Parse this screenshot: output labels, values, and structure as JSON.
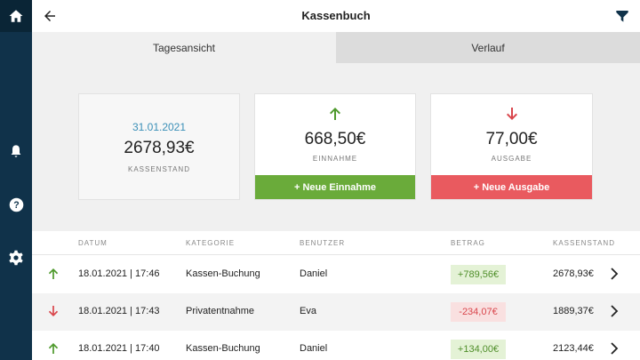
{
  "header": {
    "title": "Kassenbuch",
    "back_icon": "arrow-left-icon",
    "filter_icon": "filter-icon"
  },
  "sidebar": {
    "items": [
      {
        "icon": "home-icon"
      },
      {
        "icon": "bell-icon"
      },
      {
        "icon": "help-icon"
      },
      {
        "icon": "gear-icon"
      }
    ]
  },
  "tabs": [
    {
      "label": "Tagesansicht",
      "active": true
    },
    {
      "label": "Verlauf",
      "active": false
    }
  ],
  "summary": {
    "balance": {
      "date": "31.01.2021",
      "amount": "2678,93€",
      "label": "KASSENSTAND"
    },
    "income": {
      "amount": "668,50€",
      "label": "EINNAHME",
      "action": "+ Neue Einnahme",
      "icon": "arrow-up-icon"
    },
    "expense": {
      "amount": "77,00€",
      "label": "AUSGABE",
      "action": "+ Neue Ausgabe",
      "icon": "arrow-down-icon"
    }
  },
  "table": {
    "columns": [
      "DATUM",
      "KATEGORIE",
      "BENUTZER",
      "BETRAG",
      "KASSENSTAND"
    ],
    "rows": [
      {
        "direction": "up",
        "date": "18.01.2021 | 17:46",
        "category": "Kassen-Buchung",
        "user": "Daniel",
        "amount": "+789,56€",
        "balance": "2678,93€"
      },
      {
        "direction": "down",
        "date": "18.01.2021 | 17:43",
        "category": "Privatentnahme",
        "user": "Eva",
        "amount": "-234,07€",
        "balance": "1889,37€"
      },
      {
        "direction": "up",
        "date": "18.01.2021 | 17:40",
        "category": "Kassen-Buchung",
        "user": "Daniel",
        "amount": "+134,00€",
        "balance": "2123,44€"
      }
    ]
  },
  "colors": {
    "sidebar": "#10324a",
    "income": "#6aab3a",
    "expense": "#e95a5f",
    "date_accent": "#3a8fb7"
  }
}
